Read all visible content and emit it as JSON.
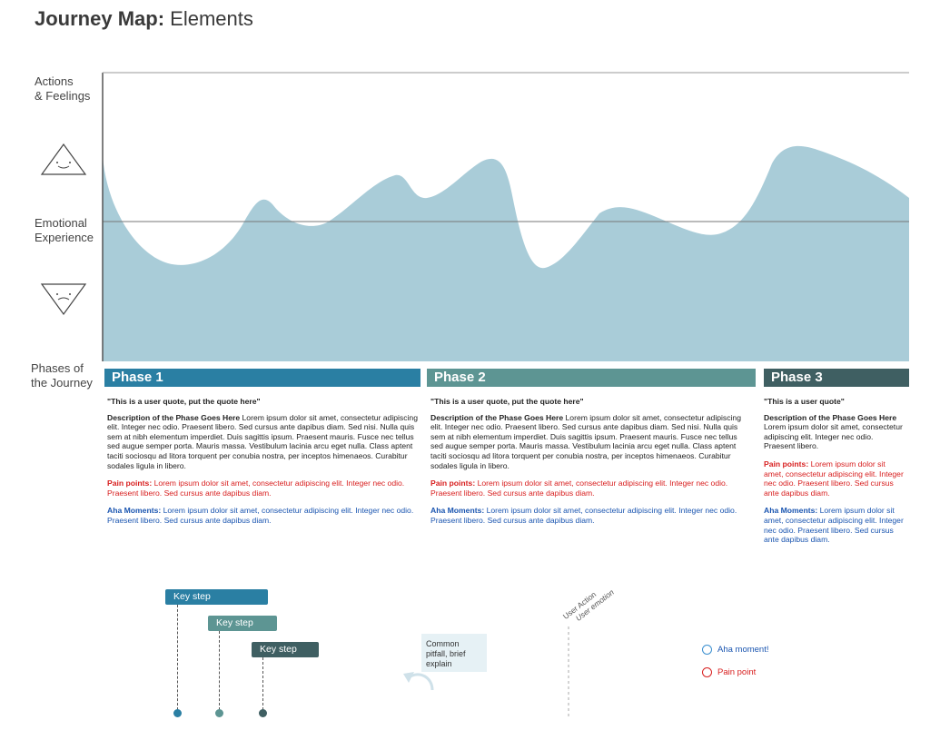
{
  "header": {
    "title_bold": "Journey Map:",
    "title_rest": " Elements"
  },
  "side_labels": {
    "actions_feelings": [
      "Actions",
      "& Feelings"
    ],
    "emotional_experience": [
      "Emotional",
      "Experience"
    ],
    "phases_journey": [
      "Phases of",
      "the Journey"
    ]
  },
  "icons": {
    "positive": "happy-triangle-icon",
    "negative": "sad-triangle-icon"
  },
  "colors": {
    "curve_fill": "#a9ccd8",
    "phase1": "#2a7fa3",
    "phase2": "#5d9593",
    "phase3": "#3f5f62",
    "pain": "#d82020",
    "aha": "#1a55b0"
  },
  "phases": [
    {
      "name": "Phase 1",
      "quote": "\"This is a user quote, put the quote here\"",
      "desc_title": "Description of the Phase Goes Here",
      "desc_body": " Lorem ipsum dolor sit amet, consectetur adipiscing elit. Integer nec odio. Praesent libero. Sed cursus ante dapibus diam. Sed nisi. Nulla quis sem at nibh elementum imperdiet. Duis sagittis ipsum. Praesent mauris. Fusce nec tellus sed augue semper porta. Mauris massa. Vestibulum lacinia arcu eget nulla. Class aptent taciti sociosqu ad litora torquent per conubia nostra, per inceptos himenaeos. Curabitur sodales ligula in libero.",
      "pain_label": "Pain points:",
      "pain_body": " Lorem ipsum dolor sit amet, consectetur adipiscing elit. Integer nec odio. Praesent libero. Sed cursus ante dapibus diam.",
      "aha_label": "Aha Moments:",
      "aha_body": " Lorem ipsum dolor sit amet, consectetur adipiscing elit. Integer nec odio. Praesent libero. Sed cursus ante dapibus diam."
    },
    {
      "name": "Phase 2",
      "quote": "\"This is a user quote, put the quote here\"",
      "desc_title": "Description of the Phase Goes Here",
      "desc_body": " Lorem ipsum dolor sit amet, consectetur adipiscing elit. Integer nec odio. Praesent libero. Sed cursus ante dapibus diam. Sed nisi. Nulla quis sem at nibh elementum imperdiet. Duis sagittis ipsum. Praesent mauris. Fusce nec tellus sed augue semper porta. Mauris massa. Vestibulum lacinia arcu eget nulla. Class aptent taciti sociosqu ad litora torquent per conubia nostra, per inceptos himenaeos. Curabitur sodales ligula in libero.",
      "pain_label": "Pain points:",
      "pain_body": " Lorem ipsum dolor sit amet, consectetur adipiscing elit. Integer nec odio. Praesent libero. Sed cursus ante dapibus diam.",
      "aha_label": "Aha Moments:",
      "aha_body": " Lorem ipsum dolor sit amet, consectetur adipiscing elit. Integer nec odio. Praesent libero. Sed cursus ante dapibus diam."
    },
    {
      "name": "Phase 3",
      "quote": "\"This is a user quote\"",
      "desc_title": "Description of the Phase Goes Here",
      "desc_body": " Lorem ipsum dolor sit amet, consectetur adipiscing elit. Integer nec odio. Praesent libero.",
      "pain_label": "Pain points:",
      "pain_body": " Lorem ipsum dolor sit amet, consectetur adipiscing elit. Integer nec odio. Praesent libero. Sed cursus ante dapibus diam.",
      "aha_label": "Aha Moments:",
      "aha_body": " Lorem ipsum dolor sit amet, consectetur adipiscing elit. Integer nec odio. Praesent libero. Sed cursus ante dapibus diam."
    }
  ],
  "elements": {
    "key_steps": [
      "Key step",
      "Key step",
      "Key step"
    ],
    "pitfall": "Common pitfall, brief explain",
    "user_action": "User Action",
    "user_emotion": "User emotion",
    "aha_legend": "Aha moment!",
    "pain_legend": "Pain point"
  }
}
